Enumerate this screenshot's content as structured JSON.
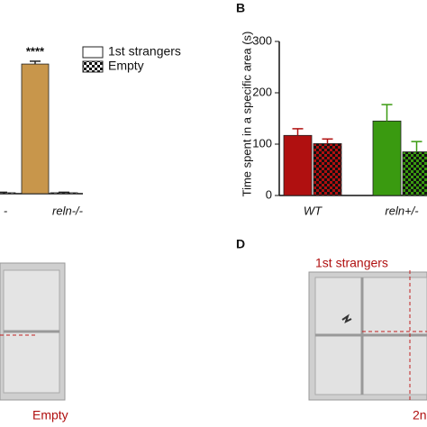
{
  "chart_data": [
    {
      "type": "bar",
      "categories": [
        "-",
        "reln-/-"
      ],
      "series": [
        {
          "name": "1st strangers",
          "color": "#c8964b",
          "legend_color": "#ffffff",
          "pattern": "solid",
          "values": [
            null,
            275
          ],
          "errors": [
            null,
            6
          ]
        },
        {
          "name": "Empty",
          "color": "#ffffff",
          "legend_color": "#ffffff",
          "pattern": "checker",
          "values": [
            2,
            2
          ],
          "errors": [
            1,
            1
          ]
        }
      ],
      "ylim": [
        0,
        300
      ],
      "annotations": [
        {
          "text": "****",
          "category": 1,
          "series": 0
        }
      ],
      "legend": "top-right"
    },
    {
      "type": "bar",
      "panel": "B",
      "ylabel": "Time spent in a specific area (s)",
      "categories": [
        "WT",
        "reln+/-"
      ],
      "category_colors": [
        "#b01010",
        "#3a9a10"
      ],
      "series": [
        {
          "name": "1st strangers",
          "pattern": "solid",
          "values": [
            117,
            145
          ],
          "errors": [
            13,
            32
          ]
        },
        {
          "name": "Empty",
          "pattern": "checker",
          "values": [
            101,
            85
          ],
          "errors": [
            9,
            20
          ]
        }
      ],
      "ylim": [
        0,
        300
      ],
      "yticks": [
        0,
        100,
        200,
        300
      ],
      "legend": "none"
    }
  ],
  "panels": {
    "C": {
      "label": "Empty"
    },
    "D": {
      "panel": "D",
      "label": "1st strangers",
      "label2": "2n"
    }
  }
}
